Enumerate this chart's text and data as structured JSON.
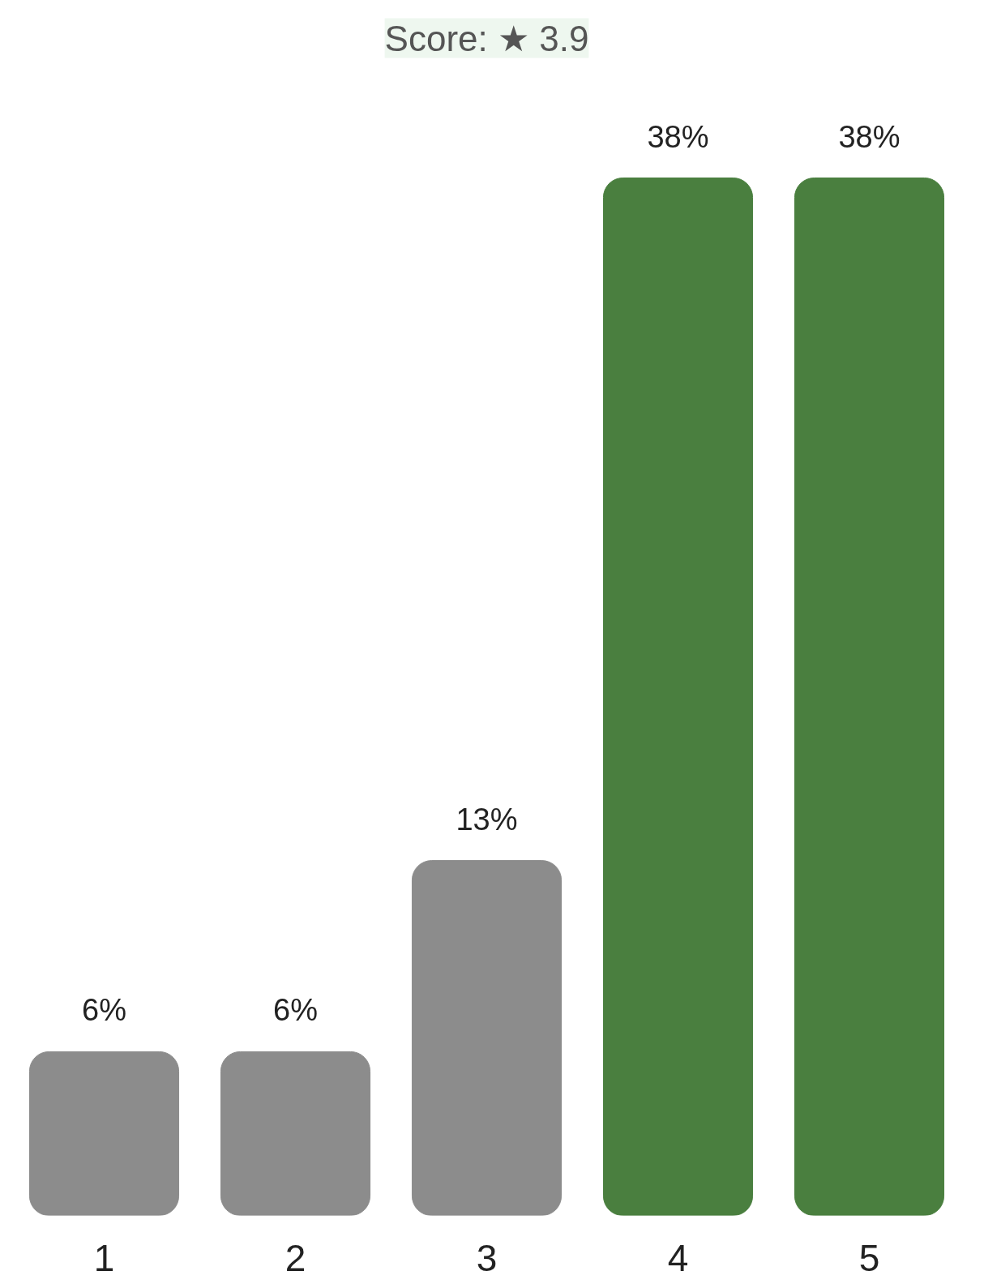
{
  "chart_data": {
    "type": "bar",
    "title": "Score: ★ 3.9",
    "categories": [
      "1",
      "2",
      "3",
      "4",
      "5"
    ],
    "values": [
      6,
      6,
      13,
      38,
      38
    ],
    "colors": [
      "#8c8c8c",
      "#8c8c8c",
      "#8c8c8c",
      "#4a7f3f",
      "#4a7f3f"
    ],
    "value_labels": [
      "6%",
      "6%",
      "13%",
      "38%",
      "38%"
    ],
    "grid": false
  }
}
